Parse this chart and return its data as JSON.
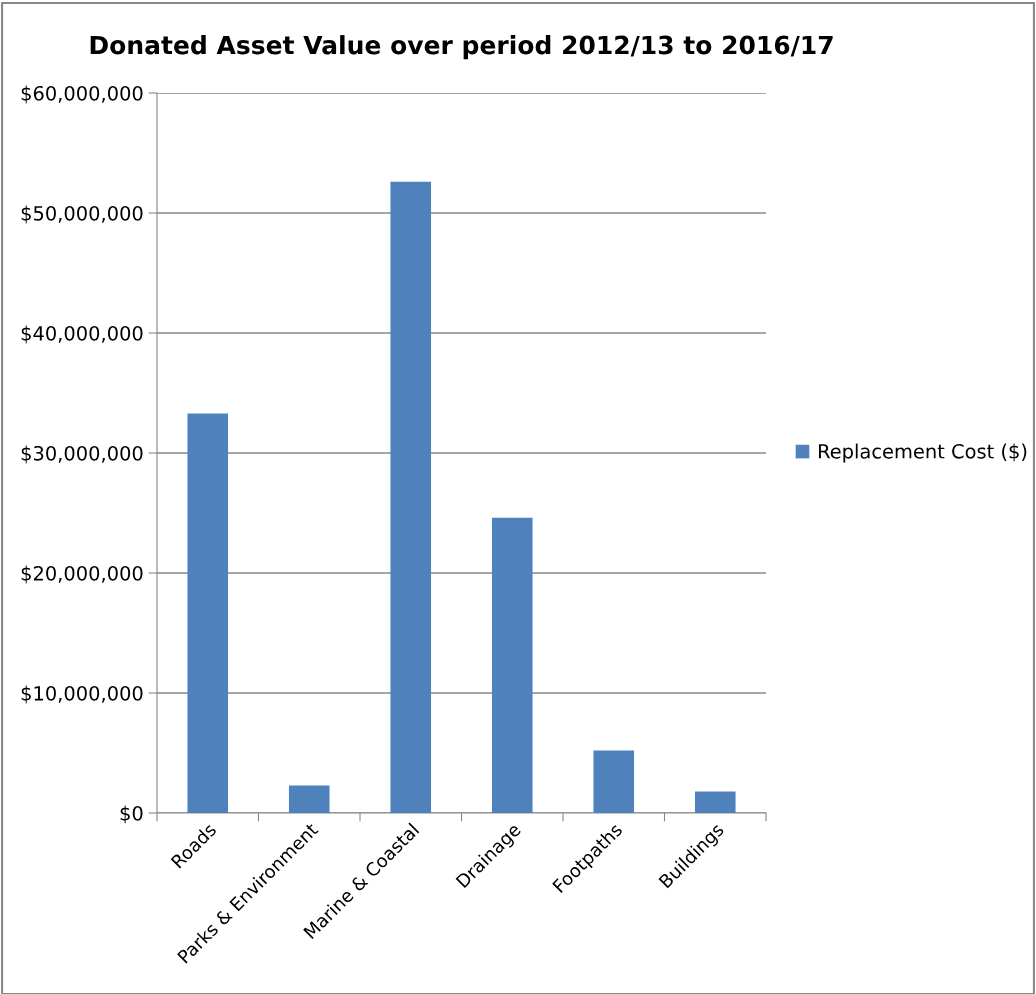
{
  "chart_data": {
    "type": "bar",
    "title": "Donated Asset Value over period 2012/13 to 2016/17",
    "categories": [
      "Roads",
      "Parks & Environment",
      "Marine & Coastal",
      "Drainage",
      "Footpaths",
      "Buildings"
    ],
    "series": [
      {
        "name": "Replacement Cost ($)",
        "color": "#4f81bd",
        "values": [
          33300000,
          2300000,
          52600000,
          24600000,
          5200000,
          1800000
        ]
      }
    ],
    "ylim": [
      0,
      60000000
    ],
    "yticks": [
      {
        "value": 0,
        "label": "$0"
      },
      {
        "value": 10000000,
        "label": "$10,000,000"
      },
      {
        "value": 20000000,
        "label": "$20,000,000"
      },
      {
        "value": 30000000,
        "label": "$30,000,000"
      },
      {
        "value": 40000000,
        "label": "$40,000,000"
      },
      {
        "value": 50000000,
        "label": "$50,000,000"
      },
      {
        "value": 60000000,
        "label": "$60,000,000"
      }
    ],
    "grid": "y",
    "legend": "right"
  }
}
